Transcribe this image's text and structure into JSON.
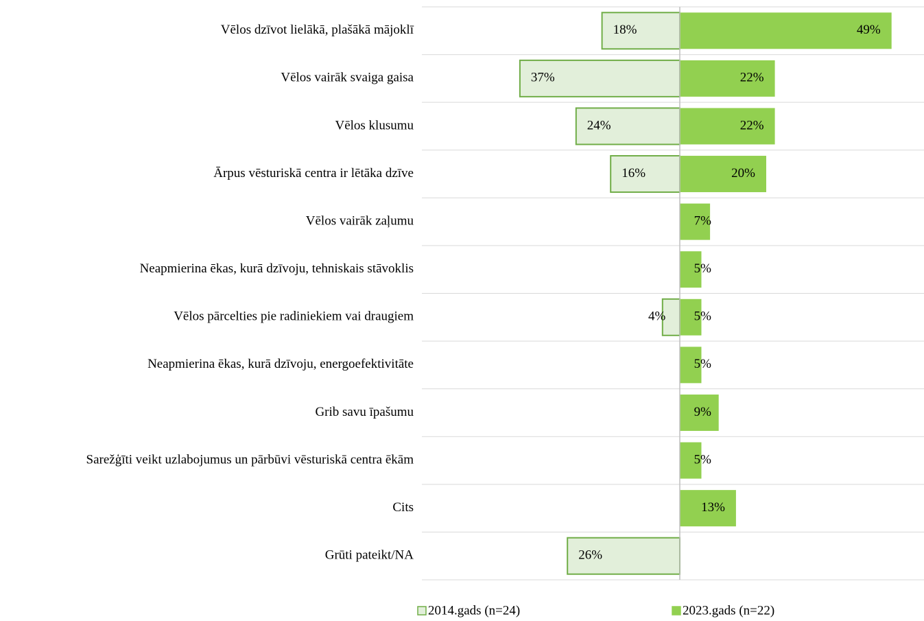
{
  "chart_data": {
    "type": "diverging-bar",
    "categories": [
      "Vēlos dzīvot lielākā, plašākā mājoklī",
      "Vēlos vairāk svaiga gaisa",
      "Vēlos klusumu",
      "Ārpus vēsturiskā centra ir lētāka dzīve",
      "Vēlos vairāk zaļumu",
      "Neapmierina ēkas, kurā dzīvoju, tehniskais stāvoklis",
      "Vēlos pārcelties pie radiniekiem vai draugiem",
      "Neapmierina ēkas, kurā dzīvoju, energoefektivitāte",
      "Grib savu īpašumu",
      "Sarežģīti veikt uzlabojumus un pārbūvi vēsturiskā centra ēkām",
      "Cits",
      "Grūti pateikt/NA"
    ],
    "series": [
      {
        "name": "2014.gads (n=24)",
        "color": "#e2efda",
        "stroke": "#70ad47",
        "side": "left",
        "values": [
          18,
          37,
          24,
          16,
          null,
          null,
          4,
          null,
          null,
          null,
          null,
          26
        ],
        "value_labels": [
          "18%",
          "37%",
          "24%",
          "16%",
          null,
          null,
          "4%",
          null,
          null,
          null,
          null,
          "26%"
        ]
      },
      {
        "name": "2023.gads (n=22)",
        "color": "#92d050",
        "side": "right",
        "values": [
          49,
          22,
          22,
          20,
          7,
          5,
          5,
          5,
          9,
          5,
          13,
          null
        ],
        "value_labels": [
          "49%",
          "22%",
          "22%",
          "20%",
          "7%",
          "5%",
          "5%",
          "5%",
          "9%",
          "5%",
          "13%",
          null
        ]
      }
    ]
  }
}
